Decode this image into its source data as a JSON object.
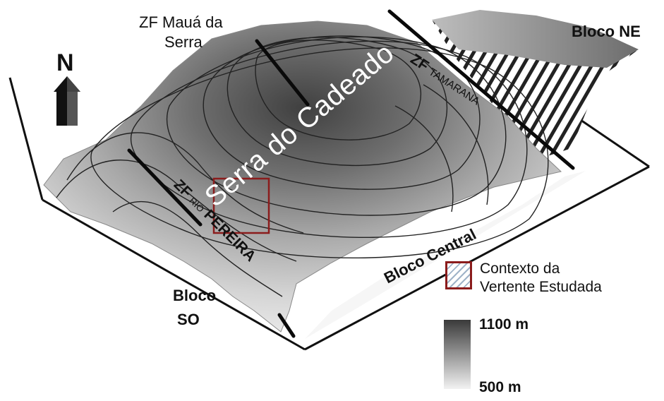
{
  "labels": {
    "zf_maua_line1": "ZF Mauá da",
    "zf_maua_line2": "Serra",
    "bloco_ne": "Bloco NE",
    "serra": "Serra do Cadeado",
    "zf_tamarana_prefix": "ZF",
    "zf_tamarana_name": "TAMARANA",
    "zf_rio_prefix": "ZF",
    "zf_rio_small": "RIO",
    "zf_rio_name": "PEREIRA",
    "bloco_central": "Bloco Central",
    "bloco_so_line1": "Bloco",
    "bloco_so_line2": "SO",
    "north": "N"
  },
  "legend": {
    "study_area_line1": "Contexto da",
    "study_area_line2": "Vertente Estudada",
    "elevation_max": "1100 m",
    "elevation_min": "500 m"
  },
  "colors": {
    "study_box": "#8b1c1c",
    "high_elevation": "#3a3a3a",
    "low_elevation": "#f2f2f2"
  }
}
